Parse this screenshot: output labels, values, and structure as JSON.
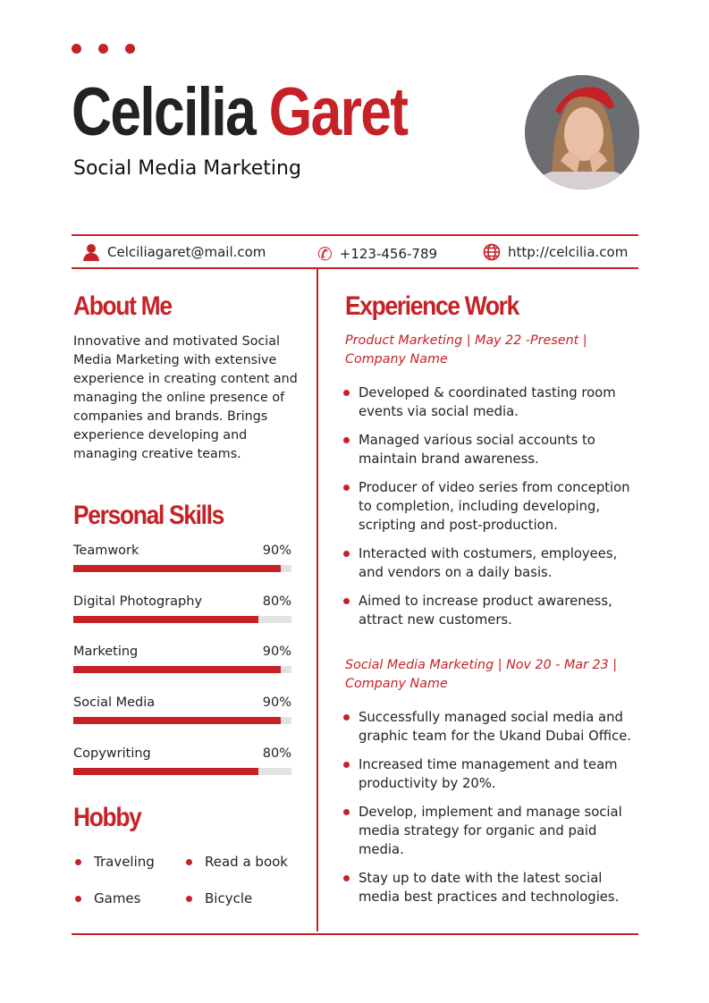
{
  "header": {
    "first_name": "Celcilia",
    "last_name": "Garet",
    "role": "Social Media Marketing"
  },
  "contact": {
    "email": "Celciliagaret@mail.com",
    "phone": "+123-456-789",
    "website": "http://celcilia.com"
  },
  "about": {
    "title": "About Me",
    "text": "Innovative and motivated Social Media Marketing with extensive experience in creating content and managing the online presence of companies and brands. Brings experience developing and managing creative teams."
  },
  "skills": {
    "title": "Personal Skills",
    "items": [
      {
        "name": "Teamwork",
        "label": "90%",
        "percent": 90
      },
      {
        "name": "Digital Photography",
        "label": "80%",
        "percent": 80
      },
      {
        "name": "Marketing",
        "label": "90%",
        "percent": 90
      },
      {
        "name": "Social Media",
        "label": "90%",
        "percent": 90
      },
      {
        "name": "Copywriting",
        "label": "80%",
        "percent": 80
      }
    ]
  },
  "hobby": {
    "title": "Hobby",
    "items": [
      "Traveling",
      "Read a book",
      "Games",
      "Bicycle"
    ]
  },
  "experience": {
    "title": "Experience Work",
    "jobs": [
      {
        "heading": "Product Marketing | May 22 -Present | Company Name",
        "bullets": [
          "Developed & coordinated tasting room events via social media.",
          "Managed various social accounts to maintain brand awareness.",
          "Producer of video series from conception to completion, including developing, scripting and post-production.",
          "Interacted with costumers, employees, and vendors on a daily basis.",
          "Aimed to increase product awareness, attract new customers."
        ]
      },
      {
        "heading": "Social Media Marketing | Nov 20 - Mar 23 | Company Name",
        "bullets": [
          "Successfully managed social media and graphic team for the Ukand Dubai Office.",
          "Increased time management and team productivity by 20%.",
          "Develop, implement and manage social media strategy for organic and paid media.",
          "Stay up to date with the latest social media best practices and technologies."
        ]
      }
    ]
  },
  "colors": {
    "accent": "#c62127"
  }
}
